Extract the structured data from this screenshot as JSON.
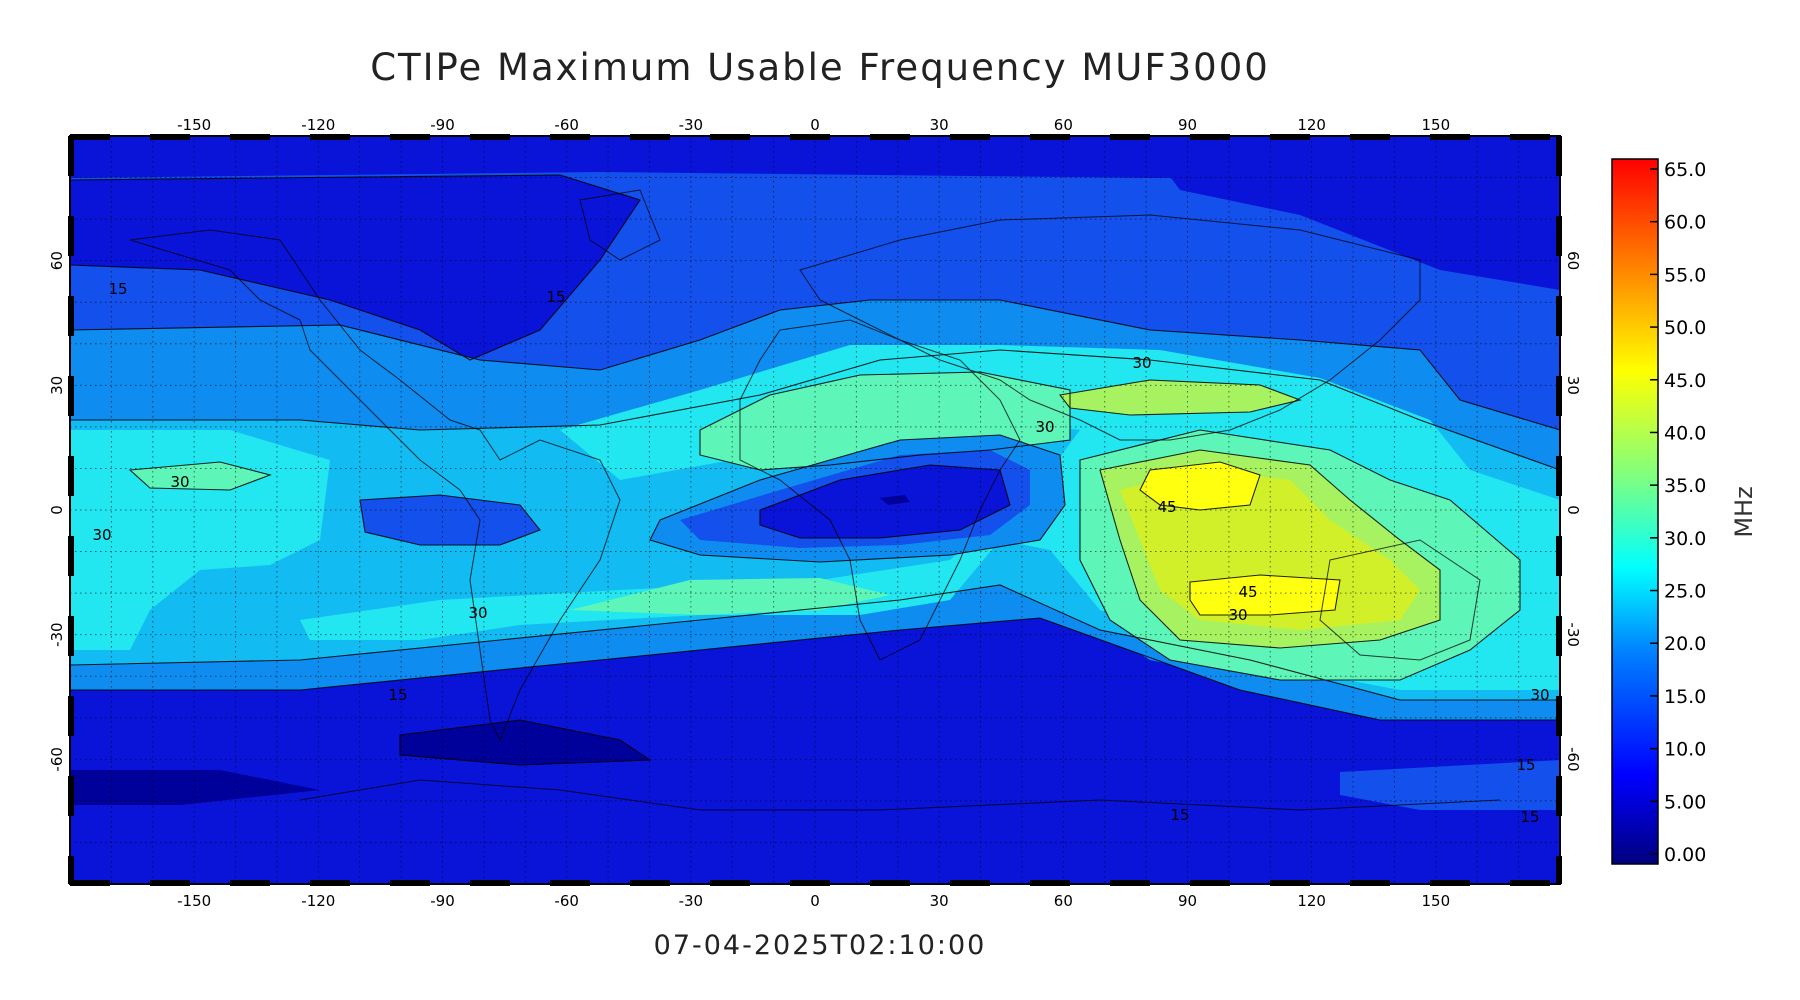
{
  "title": "CTIPe Maximum Usable Frequency MUF3000",
  "timestamp": "07-04-2025T02:10:00",
  "map": {
    "lon_range": [
      -180,
      180
    ],
    "lat_range": [
      -90,
      90
    ],
    "grid": true,
    "x_ticks": [
      "-150",
      "-120",
      "-90",
      "-60",
      "-30",
      "0",
      "30",
      "60",
      "90",
      "120",
      "150"
    ],
    "x_tick_values": [
      -150,
      -120,
      -90,
      -60,
      -30,
      0,
      30,
      60,
      90,
      120,
      150
    ],
    "y_ticks": [
      "60",
      "30",
      "0",
      "-30",
      "-60"
    ],
    "y_tick_values": [
      60,
      30,
      0,
      -30,
      -60
    ],
    "contour_labels": [
      "15",
      "15",
      "15",
      "15",
      "15",
      "15",
      "30",
      "30",
      "30",
      "30",
      "30",
      "30",
      "30",
      "45",
      "45"
    ]
  },
  "colorbar": {
    "unit": "MHz",
    "range": [
      0,
      65
    ],
    "tick_labels": [
      "65.0",
      "60.0",
      "55.0",
      "50.0",
      "45.0",
      "40.0",
      "35.0",
      "30.0",
      "25.0",
      "20.0",
      "15.0",
      "10.0",
      "5.00",
      "0.00"
    ],
    "colors": [
      "#00007f",
      "#0000ff",
      "#0080ff",
      "#00ffff",
      "#80ff80",
      "#ffff00",
      "#ff8000",
      "#ff0000"
    ]
  },
  "fill_colors": {
    "level_0_5": "#00009a",
    "level_5_10": "#0a14d8",
    "level_10_15": "#1450ec",
    "level_15_20": "#0f8cf0",
    "level_20_25": "#12bcf2",
    "level_25_30": "#22e6f0",
    "level_30_35": "#5ef5b8",
    "level_35_40": "#a6f260",
    "level_40_45": "#d2f02a",
    "level_45_50": "#ffff10"
  }
}
